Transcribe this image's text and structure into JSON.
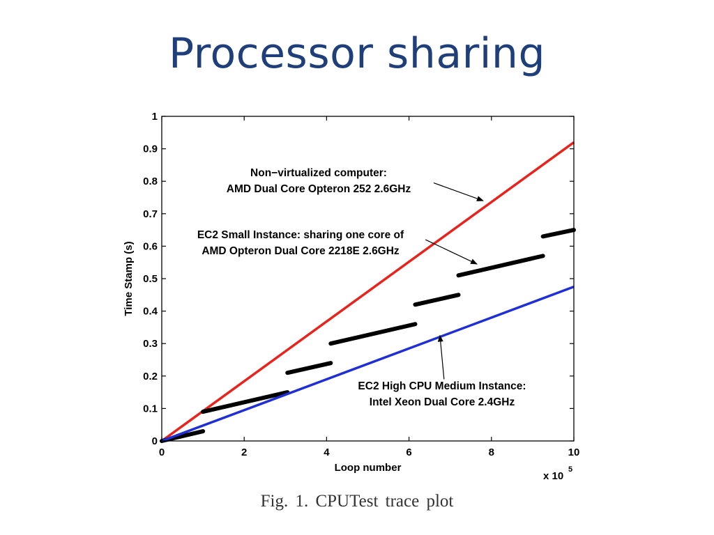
{
  "slide": {
    "title": "Processor sharing",
    "caption": "Fig. 1.    CPUTest trace plot"
  },
  "chart_data": {
    "type": "line",
    "xlabel": "Loop number",
    "ylabel": "Time Stamp (s)",
    "x_multiplier_label": "x 10",
    "x_multiplier_exponent": "5",
    "xlim": [
      0,
      10
    ],
    "ylim": [
      0,
      1
    ],
    "x_ticks": [
      0,
      2,
      4,
      6,
      8,
      10
    ],
    "y_ticks": [
      0,
      0.1,
      0.2,
      0.3,
      0.4,
      0.5,
      0.6,
      0.7,
      0.8,
      0.9,
      1
    ],
    "x_tick_labels": [
      "0",
      "2",
      "4",
      "6",
      "8",
      "10"
    ],
    "y_tick_labels": [
      "0",
      "0.1",
      "0.2",
      "0.3",
      "0.4",
      "0.5",
      "0.6",
      "0.7",
      "0.8",
      "0.9",
      "1"
    ],
    "grid": false,
    "series": [
      {
        "color": "#e8231c",
        "style": "solid",
        "points": [
          [
            0,
            0
          ],
          [
            10,
            0.92
          ]
        ]
      },
      {
        "color": "#000000",
        "style": "segments",
        "segments": [
          [
            [
              0,
              0
            ],
            [
              1.0,
              0.03
            ]
          ],
          [
            [
              1.0,
              0.09
            ],
            [
              3.05,
              0.15
            ]
          ],
          [
            [
              3.05,
              0.21
            ],
            [
              4.1,
              0.24
            ]
          ],
          [
            [
              4.1,
              0.3
            ],
            [
              6.15,
              0.36
            ]
          ],
          [
            [
              6.15,
              0.42
            ],
            [
              7.2,
              0.45
            ]
          ],
          [
            [
              7.2,
              0.51
            ],
            [
              9.25,
              0.57
            ]
          ],
          [
            [
              9.25,
              0.63
            ],
            [
              10,
              0.65
            ]
          ]
        ]
      },
      {
        "color": "#1f2fd6",
        "style": "solid",
        "points": [
          [
            0,
            0
          ],
          [
            10,
            0.475
          ]
        ]
      }
    ],
    "annotations": [
      {
        "lines": [
          "Non−virtualized computer:",
          "AMD Dual Core Opteron 252 2.6GHz"
        ],
        "arrow_from": [
          6.6,
          0.795
        ],
        "arrow_to": [
          7.8,
          0.74
        ]
      },
      {
        "lines": [
          "EC2 Small Instance: sharing one core of",
          "AMD Opteron Dual Core 2218E 2.6GHz"
        ],
        "arrow_from": [
          6.4,
          0.62
        ],
        "arrow_to": [
          7.65,
          0.545
        ]
      },
      {
        "lines": [
          "EC2 High CPU Medium Instance:",
          "Intel Xeon Dual Core 2.4GHz"
        ],
        "arrow_from": [
          6.85,
          0.19
        ],
        "arrow_to": [
          6.75,
          0.325
        ]
      }
    ]
  }
}
